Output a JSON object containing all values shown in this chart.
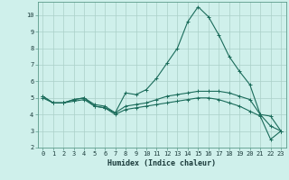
{
  "xlabel": "Humidex (Indice chaleur)",
  "bg_color": "#cff0eb",
  "grid_color": "#aacfc8",
  "line_color": "#1a6b5a",
  "xlim": [
    -0.5,
    23.5
  ],
  "ylim": [
    2,
    10.8
  ],
  "yticks": [
    2,
    3,
    4,
    5,
    6,
    7,
    8,
    9,
    10
  ],
  "xticks": [
    0,
    1,
    2,
    3,
    4,
    5,
    6,
    7,
    8,
    9,
    10,
    11,
    12,
    13,
    14,
    15,
    16,
    17,
    18,
    19,
    20,
    21,
    22,
    23
  ],
  "line1_x": [
    0,
    1,
    2,
    3,
    4,
    5,
    6,
    7,
    8,
    9,
    10,
    11,
    12,
    13,
    14,
    15,
    16,
    17,
    18,
    19,
    20,
    21,
    22,
    23
  ],
  "line1_y": [
    5.1,
    4.7,
    4.7,
    4.9,
    5.0,
    4.6,
    4.5,
    4.1,
    5.3,
    5.2,
    5.5,
    6.2,
    7.1,
    8.0,
    9.6,
    10.5,
    9.9,
    8.8,
    7.5,
    6.6,
    5.8,
    4.0,
    3.9,
    3.0
  ],
  "line2_x": [
    0,
    1,
    2,
    3,
    4,
    5,
    6,
    7,
    8,
    9,
    10,
    11,
    12,
    13,
    14,
    15,
    16,
    17,
    18,
    19,
    20,
    21,
    22,
    23
  ],
  "line2_y": [
    5.1,
    4.7,
    4.7,
    4.9,
    5.0,
    4.5,
    4.4,
    4.1,
    4.5,
    4.6,
    4.7,
    4.9,
    5.1,
    5.2,
    5.3,
    5.4,
    5.4,
    5.4,
    5.3,
    5.1,
    4.9,
    4.0,
    3.3,
    3.0
  ],
  "line3_x": [
    0,
    1,
    2,
    3,
    4,
    5,
    6,
    7,
    8,
    9,
    10,
    11,
    12,
    13,
    14,
    15,
    16,
    17,
    18,
    19,
    20,
    21,
    22,
    23
  ],
  "line3_y": [
    5.0,
    4.7,
    4.7,
    4.8,
    4.9,
    4.5,
    4.4,
    4.0,
    4.3,
    4.4,
    4.5,
    4.6,
    4.7,
    4.8,
    4.9,
    5.0,
    5.0,
    4.9,
    4.7,
    4.5,
    4.2,
    3.9,
    2.5,
    3.0
  ],
  "marker": "+",
  "markersize": 3,
  "linewidth": 0.8,
  "tick_fontsize": 5.0,
  "xlabel_fontsize": 6.0
}
